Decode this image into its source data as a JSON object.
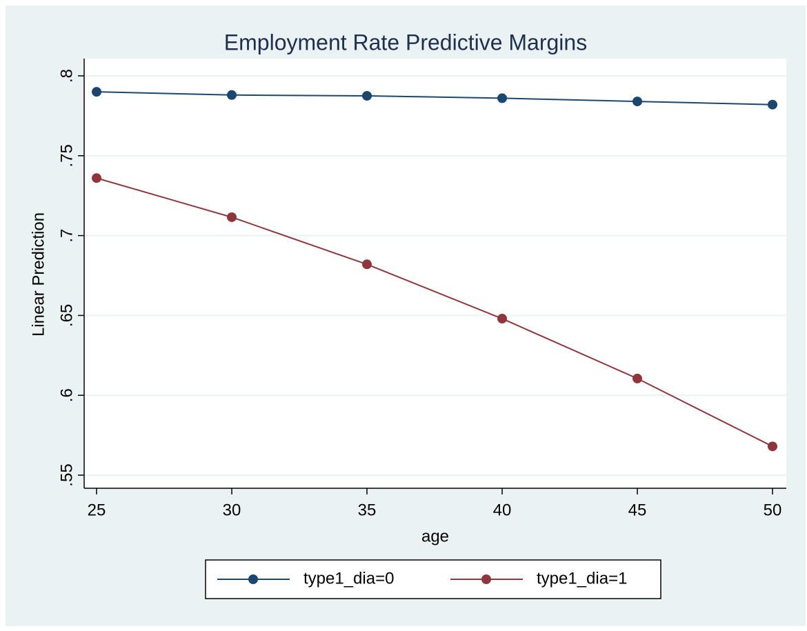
{
  "chart_data": {
    "type": "line",
    "title": "Employment Rate Predictive Margins",
    "x_label": "age",
    "y_label": "Linear Prediction",
    "x": [
      25,
      30,
      35,
      40,
      45,
      50
    ],
    "series": [
      {
        "name": "type1_dia=0",
        "color": "#1a476f",
        "values": [
          0.79,
          0.788,
          0.7875,
          0.786,
          0.784,
          0.782
        ]
      },
      {
        "name": "type1_dia=1",
        "color": "#90353b",
        "values": [
          0.736,
          0.7115,
          0.682,
          0.648,
          0.6105,
          0.568
        ]
      }
    ],
    "xlim": [
      24.54,
      50.51
    ],
    "xticks": [
      25,
      30,
      35,
      40,
      45,
      50
    ],
    "ylim": [
      0.5418,
      0.8108
    ],
    "yticks": [
      {
        "value": 0.55,
        "label": ".55"
      },
      {
        "value": 0.6,
        "label": ".6"
      },
      {
        "value": 0.65,
        "label": ".65"
      },
      {
        "value": 0.7,
        "label": ".7"
      },
      {
        "value": 0.75,
        "label": ".75"
      },
      {
        "value": 0.8,
        "label": ".8"
      }
    ],
    "grid": true,
    "legend": "bottom"
  }
}
